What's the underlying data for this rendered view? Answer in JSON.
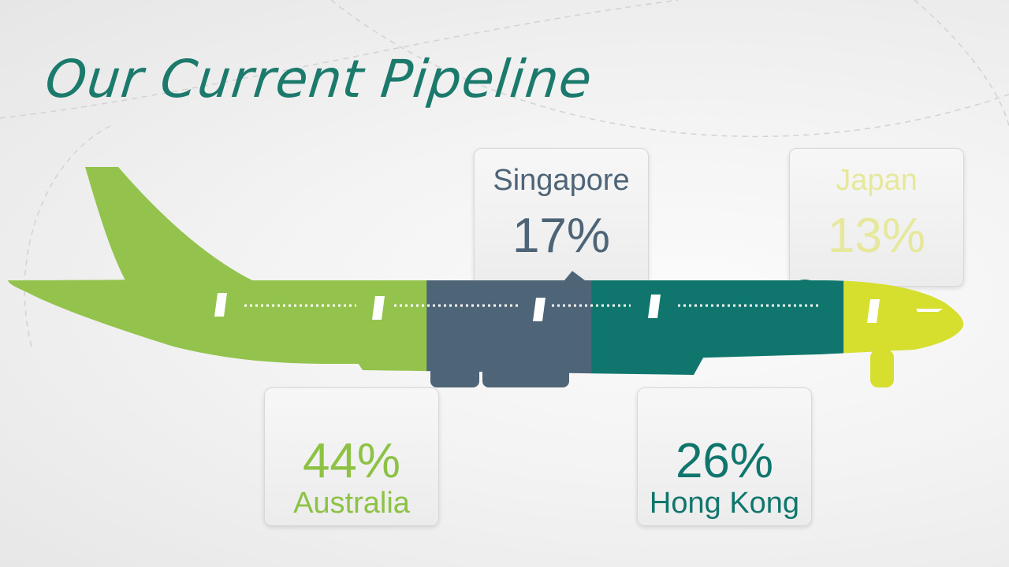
{
  "title": "Our Current Pipeline",
  "chart_data": {
    "type": "bar",
    "categories": [
      "Australia",
      "Singapore",
      "Hong Kong",
      "Japan"
    ],
    "values": [
      44,
      17,
      26,
      13
    ],
    "value_suffix": "%",
    "colors": [
      "#93c34d",
      "#4e6477",
      "#10766d",
      "#d6de2e"
    ],
    "labels": [
      "44%",
      "17%",
      "26%",
      "13%"
    ]
  }
}
